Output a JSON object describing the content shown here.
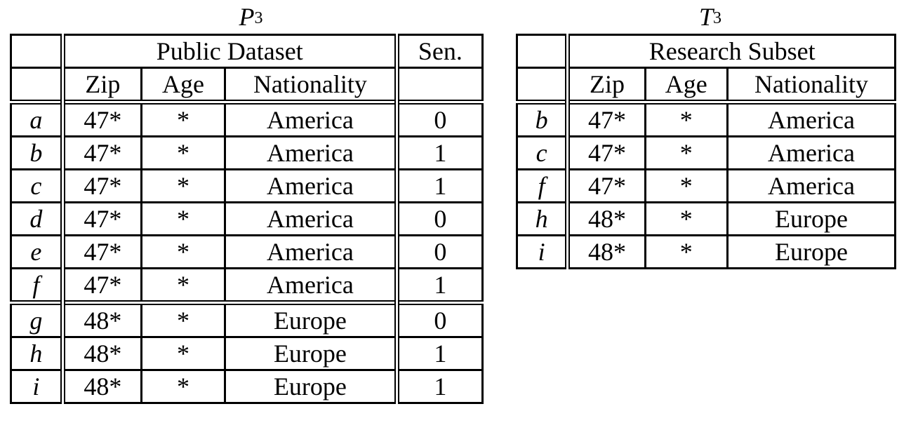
{
  "left_table": {
    "caption_symbol": "P",
    "caption_sub": "3",
    "caption_sup": "*",
    "group_header_public": "Public Dataset",
    "group_header_sensitive": "Sen.",
    "columns": [
      "Zip",
      "Age",
      "Nationality"
    ],
    "rows": [
      {
        "label": "a",
        "zip": "47*",
        "age": "*",
        "nationality": "America",
        "sen": "0"
      },
      {
        "label": "b",
        "zip": "47*",
        "age": "*",
        "nationality": "America",
        "sen": "1"
      },
      {
        "label": "c",
        "zip": "47*",
        "age": "*",
        "nationality": "America",
        "sen": "1"
      },
      {
        "label": "d",
        "zip": "47*",
        "age": "*",
        "nationality": "America",
        "sen": "0"
      },
      {
        "label": "e",
        "zip": "47*",
        "age": "*",
        "nationality": "America",
        "sen": "0"
      },
      {
        "label": "f",
        "zip": "47*",
        "age": "*",
        "nationality": "America",
        "sen": "1"
      },
      {
        "label": "g",
        "zip": "48*",
        "age": "*",
        "nationality": "Europe",
        "sen": "0"
      },
      {
        "label": "h",
        "zip": "48*",
        "age": "*",
        "nationality": "Europe",
        "sen": "1"
      },
      {
        "label": "i",
        "zip": "48*",
        "age": "*",
        "nationality": "Europe",
        "sen": "1"
      }
    ]
  },
  "right_table": {
    "caption_symbol": "T",
    "caption_sub": "3",
    "caption_sup": "*",
    "group_header": "Research Subset",
    "columns": [
      "Zip",
      "Age",
      "Nationality"
    ],
    "rows": [
      {
        "label": "b",
        "zip": "47*",
        "age": "*",
        "nationality": "America"
      },
      {
        "label": "c",
        "zip": "47*",
        "age": "*",
        "nationality": "America"
      },
      {
        "label": "f",
        "zip": "47*",
        "age": "*",
        "nationality": "America"
      },
      {
        "label": "h",
        "zip": "48*",
        "age": "*",
        "nationality": "Europe"
      },
      {
        "label": "i",
        "zip": "48*",
        "age": "*",
        "nationality": "Europe"
      }
    ]
  }
}
